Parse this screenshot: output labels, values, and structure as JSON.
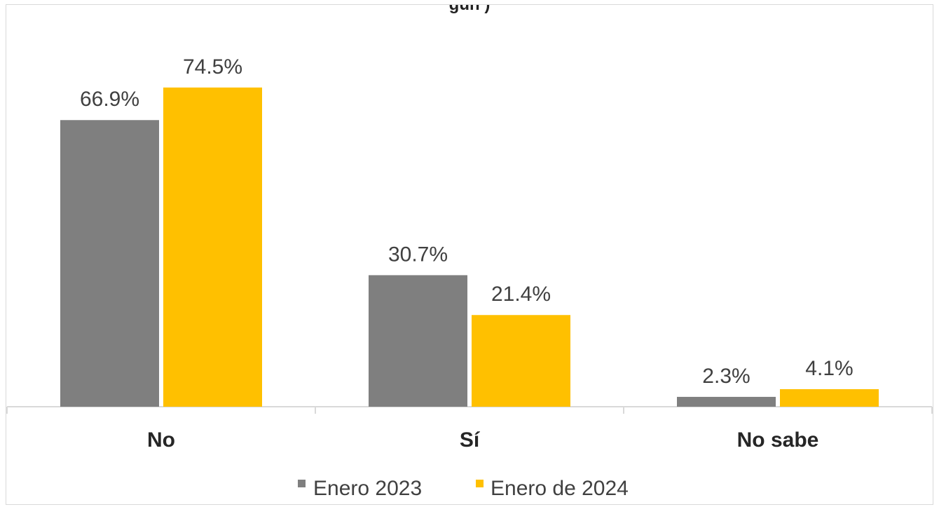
{
  "chart_data": {
    "type": "bar",
    "title": "",
    "xlabel": "",
    "ylabel": "",
    "categories": [
      "No",
      "Sí",
      "No sabe"
    ],
    "series": [
      {
        "name": "Enero 2023",
        "values": [
          66.9,
          30.7,
          2.3
        ],
        "labels": [
          "66.9%",
          "30.7%",
          "2.3%"
        ],
        "color": "#7f7f7f"
      },
      {
        "name": "Enero de 2024",
        "values": [
          74.5,
          21.4,
          4.1
        ],
        "labels": [
          "74.5%",
          "21.4%",
          "4.1%"
        ],
        "color": "#ffc000"
      }
    ],
    "ylim": [
      0,
      80
    ],
    "grid": false,
    "legend_position": "bottom"
  },
  "header": {
    "title_fragment": "gún )"
  }
}
